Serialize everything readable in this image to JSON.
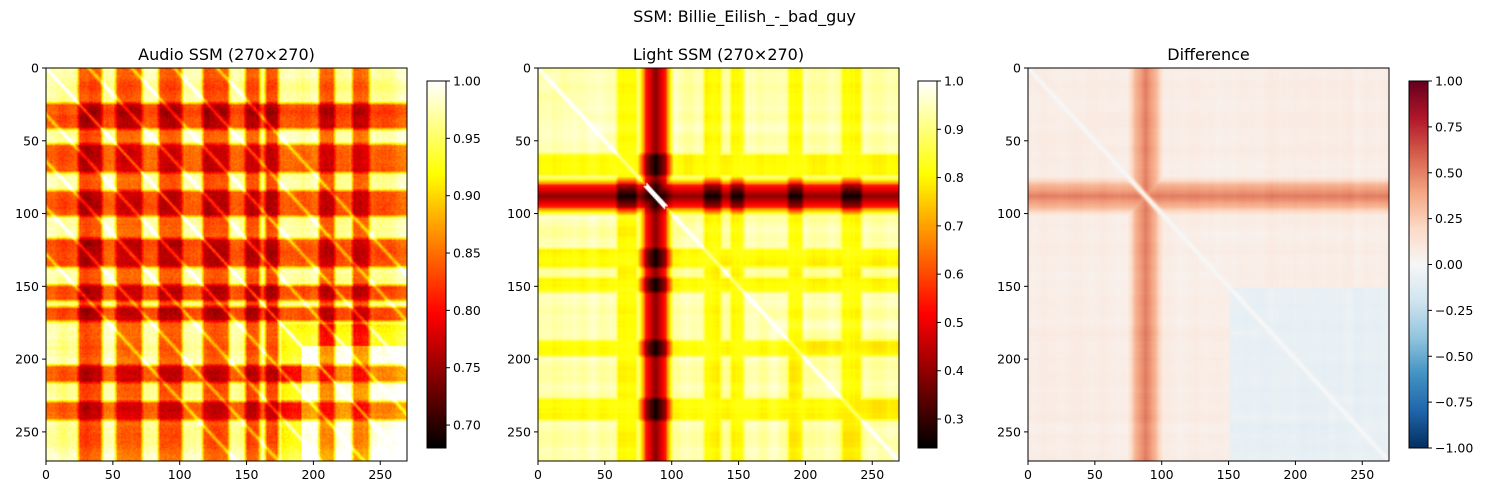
{
  "figure": {
    "suptitle": "SSM: Billie_Eilish_-_bad_guy"
  },
  "chart_data": [
    {
      "type": "heatmap",
      "title": "Audio SSM (270×270)",
      "size": 270,
      "colormap": "hot",
      "clim": [
        0.68,
        1.0
      ],
      "xlim": [
        0,
        270
      ],
      "ylim": [
        270,
        0
      ],
      "x_ticks": [
        0,
        50,
        100,
        150,
        200,
        250
      ],
      "y_ticks": [
        0,
        50,
        100,
        150,
        200,
        250
      ],
      "colorbar_ticks": [
        "0.70",
        "0.75",
        "0.80",
        "0.85",
        "0.90",
        "0.95",
        "1.00"
      ],
      "colorbar_tick_values": [
        0.7,
        0.75,
        0.8,
        0.85,
        0.9,
        0.95,
        1.0
      ],
      "structure": {
        "low_bands": [
          [
            25,
            40
          ],
          [
            53,
            70
          ],
          [
            85,
            100
          ],
          [
            118,
            135
          ],
          [
            150,
            158
          ],
          [
            165,
            172
          ],
          [
            205,
            214
          ],
          [
            230,
            240
          ]
        ],
        "repeat_period": 32,
        "off_diagonal_lines": [
          32,
          64,
          96,
          128
        ]
      }
    },
    {
      "type": "heatmap",
      "title": "Light SSM (270×270)",
      "size": 270,
      "colormap": "hot",
      "clim": [
        0.24,
        1.0
      ],
      "xlim": [
        0,
        270
      ],
      "ylim": [
        270,
        0
      ],
      "x_ticks": [
        0,
        50,
        100,
        150,
        200,
        250
      ],
      "y_ticks": [
        0,
        50,
        100,
        150,
        200,
        250
      ],
      "colorbar_ticks": [
        "0.3",
        "0.4",
        "0.5",
        "0.6",
        "0.7",
        "0.8",
        "0.9",
        "1.0"
      ],
      "colorbar_tick_values": [
        0.3,
        0.4,
        0.5,
        0.6,
        0.7,
        0.8,
        0.9,
        1.0
      ],
      "structure": {
        "dark_band": [
          80,
          95
        ],
        "orange_bands": [
          [
            60,
            72
          ],
          [
            125,
            135
          ],
          [
            145,
            152
          ],
          [
            188,
            196
          ],
          [
            228,
            240
          ]
        ]
      }
    },
    {
      "type": "heatmap",
      "title": "Difference",
      "size": 270,
      "colormap": "RdBu_r",
      "clim": [
        -1.0,
        1.0
      ],
      "xlim": [
        0,
        270
      ],
      "ylim": [
        270,
        0
      ],
      "x_ticks": [
        0,
        50,
        100,
        150,
        200,
        250
      ],
      "y_ticks": [
        0,
        50,
        100,
        150,
        200,
        250
      ],
      "colorbar_ticks": [
        "1.00",
        "0.75",
        "0.50",
        "0.25",
        "0.00",
        "−0.25",
        "−0.50",
        "−0.75",
        "−1.00"
      ],
      "colorbar_tick_values": [
        1.0,
        0.75,
        0.5,
        0.25,
        0.0,
        -0.25,
        -0.5,
        -0.75,
        -1.0
      ],
      "structure": {
        "positive_band": [
          80,
          95
        ],
        "negative_region": [
          150,
          270
        ]
      }
    }
  ]
}
